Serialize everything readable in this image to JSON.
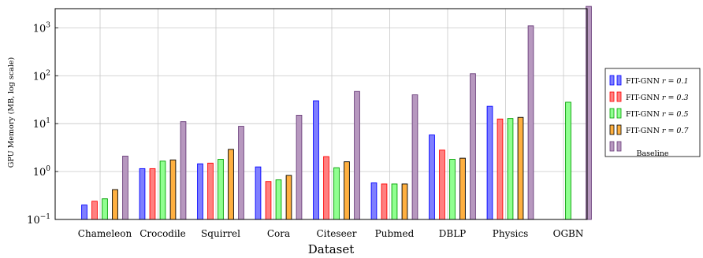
{
  "chart_data": {
    "type": "bar",
    "xlabel": "Dataset",
    "ylabel": "GPU Memory (MB, log scale)",
    "yscale": "log",
    "ylim": [
      0.1,
      3000
    ],
    "grid": true,
    "legend_placement": "outside-right",
    "categories": [
      "Chameleon",
      "Crocodile",
      "Squirrel",
      "Cora",
      "Citeseer",
      "Pubmed",
      "DBLP",
      "Physics",
      "OGBN"
    ],
    "y_ticks": [
      {
        "value": 0.1,
        "base": "10",
        "exp": "−1"
      },
      {
        "value": 1,
        "base": "10",
        "exp": "0"
      },
      {
        "value": 10,
        "base": "10",
        "exp": "1"
      },
      {
        "value": 100,
        "base": "10",
        "exp": "2"
      },
      {
        "value": 1000,
        "base": "10",
        "exp": "3"
      }
    ],
    "series": [
      {
        "name": "FIT-GNN r = 0.1",
        "legend_text": "FIT-GNN",
        "legend_math": "r = 0.1",
        "color": "#7f7fff",
        "stroke": "#0000ff",
        "values": [
          0.2,
          1.15,
          1.45,
          1.25,
          30,
          0.58,
          5.8,
          23,
          null
        ]
      },
      {
        "name": "FIT-GNN r = 0.3",
        "legend_text": "FIT-GNN",
        "legend_math": "r = 0.3",
        "color": "#ff8080",
        "stroke": "#ff0000",
        "values": [
          0.24,
          1.15,
          1.5,
          0.62,
          2.05,
          0.55,
          2.8,
          12.5,
          null
        ]
      },
      {
        "name": "FIT-GNN r = 0.5",
        "legend_text": "FIT-GNN",
        "legend_math": "r = 0.5",
        "color": "#90ff90",
        "stroke": "#00a000",
        "values": [
          0.27,
          1.65,
          1.8,
          0.67,
          1.2,
          0.55,
          1.8,
          12.8,
          28
        ]
      },
      {
        "name": "FIT-GNN r = 0.7",
        "legend_text": "FIT-GNN",
        "legend_math": "r = 0.7",
        "color": "#ffb040",
        "stroke": "#000000",
        "values": [
          0.42,
          1.75,
          2.9,
          0.83,
          1.6,
          0.55,
          1.9,
          13.5,
          null
        ]
      },
      {
        "name": "Baseline",
        "legend_text": "Baseline",
        "legend_math": "",
        "color": "#b798bf",
        "stroke": "#6a3d7a",
        "values": [
          2.1,
          11,
          8.8,
          15,
          47,
          40,
          110,
          1100,
          2800
        ]
      }
    ]
  }
}
